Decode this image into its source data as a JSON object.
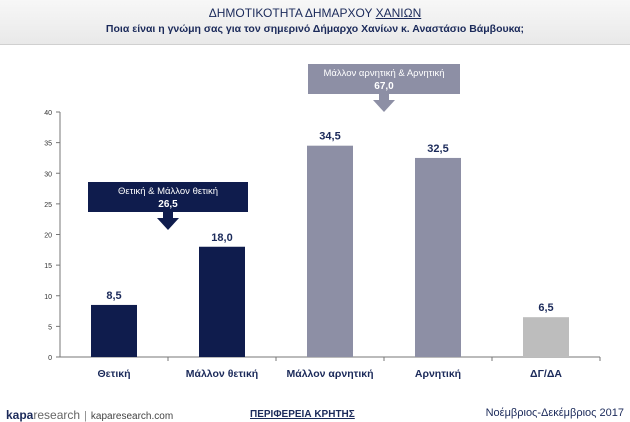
{
  "header": {
    "title_main": "ΔΗΜΟΤΙΚΟΤΗΤΑ ΔΗΜΑΡΧΟΥ ",
    "title_underlined": "ΧΑΝΙΩΝ",
    "subtitle": "Ποια είναι η γνώμη σας για τον σημερινό Δήμαρχο Χανίων κ. Αναστάσιο Βάμβουκα;"
  },
  "chart_data": {
    "type": "bar",
    "categories": [
      "Θετική",
      "Μάλλον θετική",
      "Μάλλον αρνητική",
      "Αρνητική",
      "ΔΓ/ΔΑ"
    ],
    "values": [
      8.5,
      18.0,
      34.5,
      32.5,
      6.5
    ],
    "value_labels": [
      "8,5",
      "18,0",
      "34,5",
      "32,5",
      "6,5"
    ],
    "ylim": [
      0,
      40
    ],
    "yticks": [
      0,
      5,
      10,
      15,
      20,
      25,
      30,
      35,
      40
    ],
    "colors": [
      "#0f1c4d",
      "#0f1c4d",
      "#8d8fa5",
      "#8d8fa5",
      "#bdbdbd"
    ],
    "grid": false,
    "annotations": [
      {
        "label": "Θετική & Μάλλον θετική",
        "value": "26,5",
        "color": "#0f1c4d"
      },
      {
        "label": "Μάλλον αρνητική & Αρνητική",
        "value": "67,0",
        "color": "#8d8fa5"
      }
    ]
  },
  "footer": {
    "logo_kapa": "kapa",
    "logo_research": "research",
    "separator": "|",
    "url": "kaparesearch.com",
    "region": "ΠΕΡΙΦΕΡΕΙΑ ΚΡΗΤΗΣ",
    "date": "Νοέμβριος-Δεκέμβριος 2017"
  }
}
